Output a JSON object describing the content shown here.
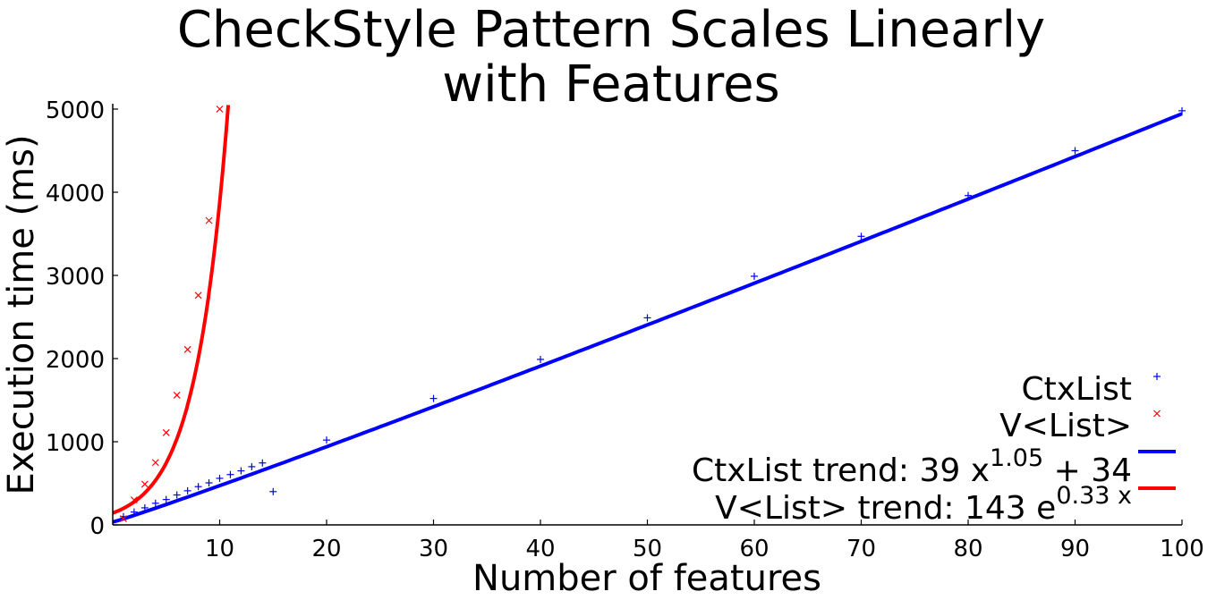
{
  "chart_data": {
    "type": "line",
    "title_line1": "CheckStyle Pattern Scales Linearly",
    "title_line2": "with Features",
    "xlabel": "Number of features",
    "ylabel": "Execution time (ms)",
    "xlim": [
      0,
      100
    ],
    "ylim": [
      0,
      5000
    ],
    "x_ticks": [
      10,
      20,
      30,
      40,
      50,
      60,
      70,
      80,
      90,
      100
    ],
    "y_ticks": [
      0,
      1000,
      2000,
      3000,
      4000,
      5000
    ],
    "grid": false,
    "legend_position": "bottom-right",
    "series": [
      {
        "name": "CtxList",
        "kind": "scatter",
        "marker": "plus",
        "color": "#0000ff",
        "x": [
          1,
          2,
          3,
          4,
          5,
          6,
          7,
          8,
          9,
          10,
          11,
          12,
          13,
          14,
          15,
          20,
          30,
          40,
          50,
          60,
          70,
          80,
          90,
          100
        ],
        "y": [
          100,
          155,
          205,
          260,
          305,
          360,
          410,
          460,
          505,
          560,
          605,
          650,
          700,
          745,
          400,
          1020,
          1520,
          1990,
          2490,
          2990,
          3470,
          3960,
          4500,
          4980
        ]
      },
      {
        "name": "V<List>",
        "kind": "scatter",
        "marker": "x",
        "color": "#ff0000",
        "x": [
          1,
          2,
          3,
          4,
          5,
          6,
          7,
          8,
          9,
          10
        ],
        "y": [
          75,
          300,
          490,
          750,
          1110,
          1560,
          2110,
          2760,
          3660,
          5000
        ]
      }
    ],
    "trends": [
      {
        "name": "CtxList trend",
        "label_text": "CtxList trend: 39 x",
        "exponent_text": "1.05",
        "suffix_text": " + 34",
        "model": "power",
        "a": 39,
        "b": 1.05,
        "c": 34,
        "color": "#0000ff"
      },
      {
        "name": "V<List> trend",
        "label_text": "V<List> trend: 143 e",
        "exponent_text": "0.33 x",
        "suffix_text": "",
        "model": "exponential",
        "a": 143,
        "b": 0.33,
        "color": "#ff0000"
      }
    ]
  }
}
